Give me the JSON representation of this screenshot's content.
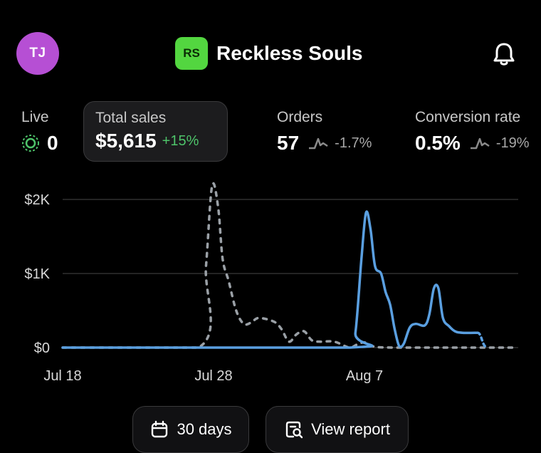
{
  "header": {
    "avatar_initials": "TJ",
    "avatar_color": "#b64fd4",
    "store_badge": "RS",
    "store_badge_color": "#53d640",
    "store_name": "Reckless Souls",
    "notification_icon": "bell-icon"
  },
  "metrics": {
    "live": {
      "label": "Live",
      "value": "0",
      "icon": "live-pulse-icon"
    },
    "total_sales": {
      "label": "Total sales",
      "value": "$5,615",
      "change": "+15%"
    },
    "orders": {
      "label": "Orders",
      "value": "57",
      "change": "-1.7%",
      "icon": "sparkline-icon"
    },
    "conversion": {
      "label": "Conversion rate",
      "value": "0.5%",
      "change": "-19%",
      "icon": "sparkline-icon"
    }
  },
  "chart_data": {
    "type": "line",
    "y_ticks": [
      "$2K",
      "$1K",
      "$0"
    ],
    "ylim": [
      0,
      2000
    ],
    "x_ticks": [
      "Jul 18",
      "Jul 28",
      "Aug 7"
    ],
    "grid": true,
    "series": [
      {
        "style": "dashed",
        "color": "#9aa0a6",
        "points": [
          [
            "Jul 18",
            0
          ],
          [
            "Jul 27",
            0
          ],
          [
            "Jul 27.5",
            1100
          ],
          [
            "Jul 27.9",
            2180
          ],
          [
            "Jul 28.3",
            1900
          ],
          [
            "Jul 28.6",
            1200
          ],
          [
            "Jul 29",
            900
          ],
          [
            "Jul 29.5",
            500
          ],
          [
            "Jul 30",
            320
          ],
          [
            "Jul 30.5",
            340
          ],
          [
            "Jul 31",
            400
          ],
          [
            "Aug 1",
            350
          ],
          [
            "Aug 1.5",
            250
          ],
          [
            "Aug 2",
            80
          ],
          [
            "Aug 2.5",
            180
          ],
          [
            "Aug 3",
            220
          ],
          [
            "Aug 3.5",
            100
          ],
          [
            "Aug 4",
            80
          ],
          [
            "Aug 5",
            80
          ],
          [
            "Aug 6",
            0
          ],
          [
            "Aug 6.5",
            40
          ],
          [
            "Aug 7",
            70
          ],
          [
            "Aug 7.5",
            20
          ],
          [
            "Aug 9",
            0
          ],
          [
            "Aug 17",
            0
          ]
        ]
      },
      {
        "style": "solid",
        "color": "#5a9fe0",
        "points": [
          [
            "Jul 18",
            0
          ],
          [
            "Aug 6",
            0
          ],
          [
            "Aug 6.4",
            200
          ],
          [
            "Aug 6.8",
            1200
          ],
          [
            "Aug 7.1",
            1820
          ],
          [
            "Aug 7.4",
            1600
          ],
          [
            "Aug 7.7",
            1100
          ],
          [
            "Aug 8.1",
            1000
          ],
          [
            "Aug 8.4",
            750
          ],
          [
            "Aug 8.7",
            580
          ],
          [
            "Aug 9",
            250
          ],
          [
            "Aug 9.3",
            20
          ],
          [
            "Aug 9.6",
            50
          ],
          [
            "Aug 10",
            270
          ],
          [
            "Aug 10.4",
            320
          ],
          [
            "Aug 11",
            300
          ],
          [
            "Aug 11.3",
            450
          ],
          [
            "Aug 11.6",
            800
          ],
          [
            "Aug 11.9",
            800
          ],
          [
            "Aug 12.2",
            400
          ],
          [
            "Aug 12.6",
            290
          ],
          [
            "Aug 13",
            220
          ],
          [
            "Aug 13.5",
            200
          ],
          [
            "Aug 14.5",
            200
          ]
        ]
      }
    ]
  },
  "buttons": {
    "range_label": "30 days",
    "range_icon": "calendar-icon",
    "report_label": "View report",
    "report_icon": "report-search-icon"
  }
}
